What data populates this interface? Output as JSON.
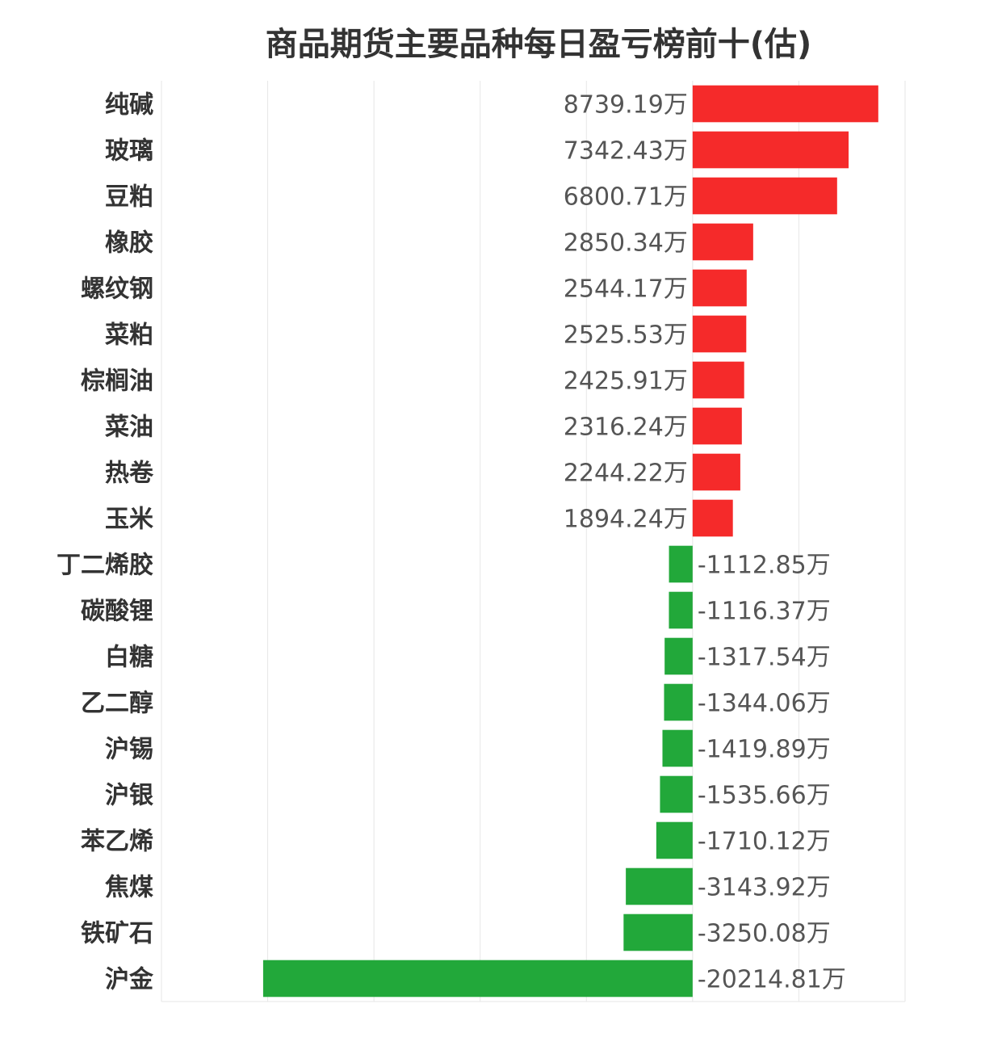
{
  "chart_data": {
    "type": "bar",
    "orientation": "horizontal",
    "title": "商品期货主要品种每日盈亏榜前十(估)",
    "value_unit": "万",
    "categories": [
      "纯碱",
      "玻璃",
      "豆粕",
      "橡胶",
      "螺纹钢",
      "菜粕",
      "棕榈油",
      "菜油",
      "热卷",
      "玉米",
      "丁二烯胶",
      "碳酸锂",
      "白糖",
      "乙二醇",
      "沪锡",
      "沪银",
      "苯乙烯",
      "焦煤",
      "铁矿石",
      "沪金"
    ],
    "values": [
      8739.19,
      7342.43,
      6800.71,
      2850.34,
      2544.17,
      2525.53,
      2425.91,
      2316.24,
      2244.22,
      1894.24,
      -1112.85,
      -1116.37,
      -1317.54,
      -1344.06,
      -1419.89,
      -1535.66,
      -1710.12,
      -3143.92,
      -3250.08,
      -20214.81
    ],
    "labels": [
      "8739.19万",
      "7342.43万",
      "6800.71万",
      "2850.34万",
      "2544.17万",
      "2525.53万",
      "2425.91万",
      "2316.24万",
      "2244.22万",
      "1894.24万",
      "-1112.85万",
      "-1116.37万",
      "-1317.54万",
      "-1344.06万",
      "-1419.89万",
      "-1535.66万",
      "-1710.12万",
      "-3143.92万",
      "-3250.08万",
      "-20214.81万"
    ],
    "xlim": [
      -25000,
      10000
    ],
    "grid": true,
    "colors": {
      "positive": "#f52a2a",
      "negative": "#22a83a",
      "label": "#555555",
      "category": "#333333",
      "grid": "#e6e6e6"
    }
  }
}
